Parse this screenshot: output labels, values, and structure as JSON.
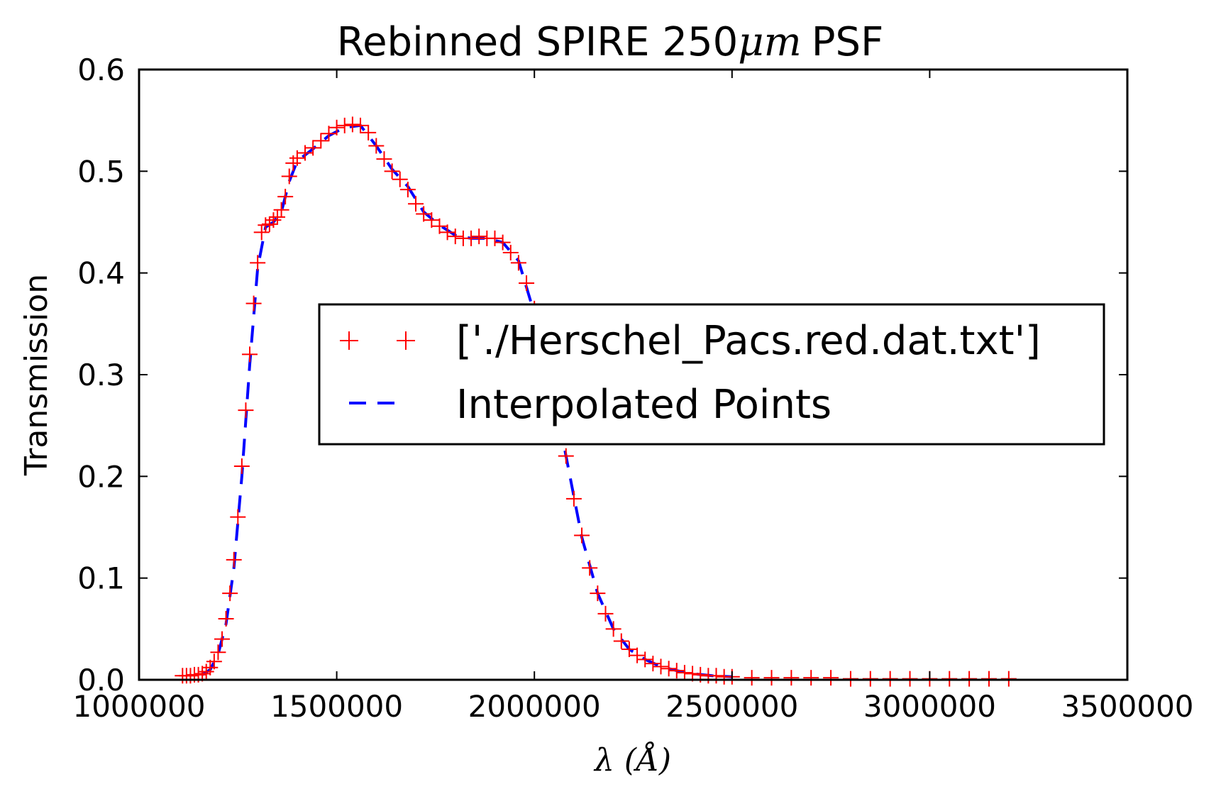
{
  "chart_data": {
    "type": "line",
    "title_text": "Rebinned SPIRE 250",
    "title_math": "μm",
    "title_suffix": "PSF",
    "xlabel_math": "λ (Å)",
    "ylabel": "Transmission",
    "xlim": [
      1000000,
      3500000
    ],
    "ylim": [
      0,
      0.6
    ],
    "xticks": [
      1000000,
      1500000,
      2000000,
      2500000,
      3000000,
      3500000
    ],
    "xtick_labels": [
      "1000000",
      "1500000",
      "2000000",
      "2500000",
      "3000000",
      "3500000"
    ],
    "yticks": [
      0.0,
      0.1,
      0.2,
      0.3,
      0.4,
      0.5,
      0.6
    ],
    "ytick_labels": [
      "0.0",
      "0.1",
      "0.2",
      "0.3",
      "0.4",
      "0.5",
      "0.6"
    ],
    "grid": false,
    "legend_position": "center-right",
    "series": [
      {
        "name": "['./Herschel_Pacs.red.dat.txt']",
        "style": "markers-plus",
        "color": "#ff0000",
        "x": [
          1110000,
          1120000,
          1130000,
          1140000,
          1150000,
          1160000,
          1170000,
          1180000,
          1190000,
          1200000,
          1210000,
          1220000,
          1230000,
          1240000,
          1250000,
          1260000,
          1270000,
          1280000,
          1290000,
          1300000,
          1310000,
          1320000,
          1330000,
          1340000,
          1350000,
          1360000,
          1370000,
          1380000,
          1390000,
          1400000,
          1420000,
          1440000,
          1460000,
          1480000,
          1500000,
          1520000,
          1540000,
          1560000,
          1580000,
          1600000,
          1620000,
          1640000,
          1660000,
          1680000,
          1700000,
          1720000,
          1740000,
          1760000,
          1780000,
          1800000,
          1820000,
          1840000,
          1860000,
          1880000,
          1900000,
          1920000,
          1940000,
          1960000,
          1980000,
          2000000,
          2020000,
          2040000,
          2060000,
          2080000,
          2100000,
          2120000,
          2140000,
          2160000,
          2180000,
          2200000,
          2220000,
          2240000,
          2260000,
          2280000,
          2300000,
          2320000,
          2340000,
          2360000,
          2380000,
          2400000,
          2420000,
          2440000,
          2460000,
          2480000,
          2500000,
          2550000,
          2600000,
          2650000,
          2700000,
          2750000,
          2800000,
          2850000,
          2900000,
          2950000,
          3000000,
          3050000,
          3100000,
          3150000,
          3200000
        ],
        "y": [
          0.004,
          0.004,
          0.004,
          0.005,
          0.005,
          0.006,
          0.008,
          0.012,
          0.018,
          0.027,
          0.04,
          0.06,
          0.085,
          0.118,
          0.16,
          0.21,
          0.265,
          0.32,
          0.37,
          0.41,
          0.44,
          0.447,
          0.448,
          0.452,
          0.455,
          0.462,
          0.475,
          0.495,
          0.508,
          0.513,
          0.518,
          0.523,
          0.53,
          0.537,
          0.543,
          0.545,
          0.546,
          0.545,
          0.538,
          0.525,
          0.512,
          0.5,
          0.492,
          0.482,
          0.468,
          0.458,
          0.452,
          0.446,
          0.44,
          0.436,
          0.434,
          0.434,
          0.436,
          0.434,
          0.434,
          0.43,
          0.42,
          0.41,
          0.39,
          0.365,
          0.335,
          0.3,
          0.262,
          0.22,
          0.178,
          0.142,
          0.11,
          0.085,
          0.065,
          0.05,
          0.038,
          0.03,
          0.024,
          0.02,
          0.016,
          0.013,
          0.011,
          0.009,
          0.007,
          0.006,
          0.005,
          0.004,
          0.004,
          0.003,
          0.003,
          0.002,
          0.002,
          0.002,
          0.002,
          0.002,
          0.001,
          0.001,
          0.001,
          0.001,
          0.001,
          0.001,
          0.001,
          0.001,
          0.001
        ]
      },
      {
        "name": "Interpolated Points",
        "style": "dashed-line",
        "color": "#0000ff",
        "x": [
          1160000,
          1180000,
          1200000,
          1220000,
          1240000,
          1260000,
          1280000,
          1300000,
          1320000,
          1340000,
          1360000,
          1380000,
          1400000,
          1440000,
          1480000,
          1520000,
          1560000,
          1600000,
          1640000,
          1680000,
          1720000,
          1760000,
          1800000,
          1840000,
          1880000,
          1920000,
          1960000,
          2000000,
          2040000,
          2080000,
          2120000,
          2160000,
          2200000,
          2240000,
          2280000,
          2320000,
          2360000,
          2400000,
          2450000,
          2500000
        ],
        "y": [
          0.005,
          0.01,
          0.025,
          0.055,
          0.11,
          0.2,
          0.31,
          0.405,
          0.445,
          0.45,
          0.46,
          0.49,
          0.51,
          0.522,
          0.535,
          0.543,
          0.545,
          0.525,
          0.502,
          0.485,
          0.46,
          0.447,
          0.437,
          0.434,
          0.434,
          0.43,
          0.412,
          0.36,
          0.3,
          0.22,
          0.14,
          0.085,
          0.05,
          0.03,
          0.02,
          0.013,
          0.009,
          0.006,
          0.004,
          0.003
        ]
      }
    ]
  }
}
